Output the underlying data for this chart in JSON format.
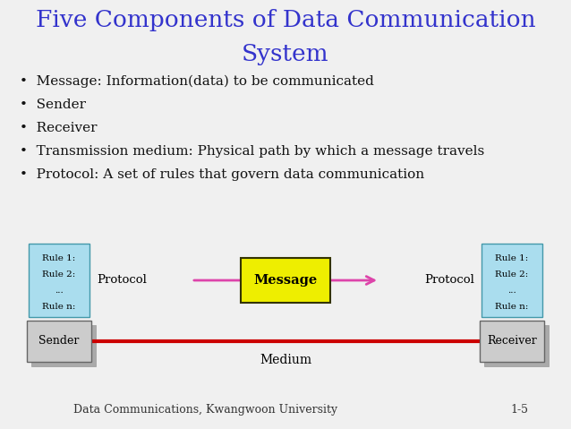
{
  "title_line1": "Five Components of Data Communication",
  "title_line2": "System",
  "title_color": "#3333cc",
  "title_fontsize": 19,
  "bullets": [
    "Message: Information(data) to be communicated",
    "Sender",
    "Receiver",
    "Transmission medium: Physical path by which a message travels",
    "Protocol: A set of rules that govern data communication"
  ],
  "bullet_fontsize": 11,
  "bg_color": "#f0f0f0",
  "footer_left": "Data Communications, Kwangwoon University",
  "footer_right": "1-5",
  "footer_fontsize": 9,
  "sender_box_color": "#cccccc",
  "receiver_box_color": "#cccccc",
  "protocol_box_color": "#aaddee",
  "message_box_color": "#eeee00",
  "medium_line_color": "#cc0000",
  "message_arrow_color": "#dd44aa"
}
